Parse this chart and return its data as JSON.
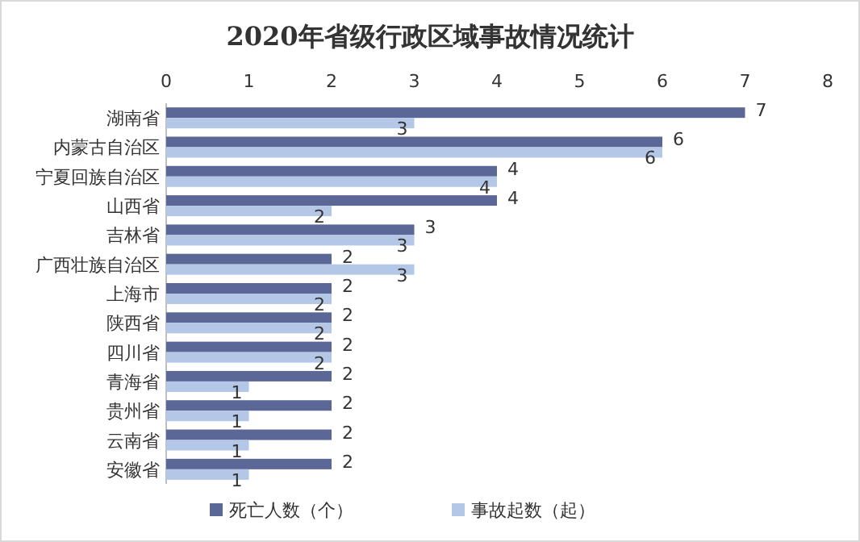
{
  "chart_data": {
    "type": "bar",
    "orientation": "horizontal",
    "title": "2020年省级行政区域事故情况统计",
    "categories": [
      "湖南省",
      "内蒙古自治区",
      "宁夏回族自治区",
      "山西省",
      "吉林省",
      "广西壮族自治区",
      "上海市",
      "陕西省",
      "四川省",
      "青海省",
      "贵州省",
      "云南省",
      "安徽省"
    ],
    "series": [
      {
        "name": "死亡人数（个）",
        "color": "#5b6796",
        "values": [
          7,
          6,
          4,
          4,
          3,
          2,
          2,
          2,
          2,
          2,
          2,
          2,
          2
        ]
      },
      {
        "name": "事故起数（起）",
        "color": "#b4c7e7",
        "values": [
          3,
          6,
          4,
          2,
          3,
          3,
          2,
          2,
          2,
          1,
          1,
          1,
          1
        ]
      }
    ],
    "xlim": [
      0,
      8
    ],
    "xticks": [
      0,
      1,
      2,
      3,
      4,
      5,
      6,
      7,
      8
    ],
    "data_labels": true,
    "legend": "bottom",
    "grid": false
  }
}
